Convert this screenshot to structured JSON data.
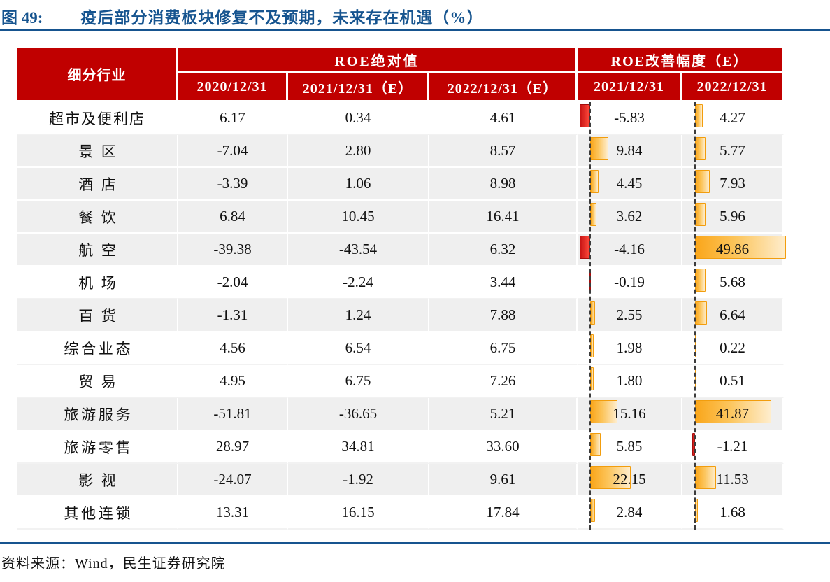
{
  "figure": {
    "tag": "图 49:",
    "title": "疫后部分消费板块修复不及预期，未来存在机遇（%）"
  },
  "table": {
    "corner_header": "细分行业",
    "group_headers": [
      {
        "label": "ROE绝对值",
        "span": 3
      },
      {
        "label": "ROE改善幅度（E）",
        "span": 2
      }
    ],
    "sub_headers": [
      "2020/12/31",
      "2021/12/31（E）",
      "2022/12/31（E）",
      "2021/12/31",
      "2022/12/31"
    ],
    "rows": [
      {
        "label": "超市及便利店",
        "roe": [
          "6.17",
          "0.34",
          "4.61"
        ],
        "impr": [
          "-5.83",
          "4.27"
        ],
        "shaded": false
      },
      {
        "label": "景区",
        "roe": [
          "-7.04",
          "2.80",
          "8.57"
        ],
        "impr": [
          "9.84",
          "5.77"
        ],
        "shaded": true
      },
      {
        "label": "酒店",
        "roe": [
          "-3.39",
          "1.06",
          "8.98"
        ],
        "impr": [
          "4.45",
          "7.93"
        ],
        "shaded": true
      },
      {
        "label": "餐饮",
        "roe": [
          "6.84",
          "10.45",
          "16.41"
        ],
        "impr": [
          "3.62",
          "5.96"
        ],
        "shaded": true
      },
      {
        "label": "航空",
        "roe": [
          "-39.38",
          "-43.54",
          "6.32"
        ],
        "impr": [
          "-4.16",
          "49.86"
        ],
        "shaded": true
      },
      {
        "label": "机场",
        "roe": [
          "-2.04",
          "-2.24",
          "3.44"
        ],
        "impr": [
          "-0.19",
          "5.68"
        ],
        "shaded": false
      },
      {
        "label": "百货",
        "roe": [
          "-1.31",
          "1.24",
          "7.88"
        ],
        "impr": [
          "2.55",
          "6.64"
        ],
        "shaded": true
      },
      {
        "label": "综合业态",
        "roe": [
          "4.56",
          "6.54",
          "6.75"
        ],
        "impr": [
          "1.98",
          "0.22"
        ],
        "shaded": false
      },
      {
        "label": "贸易",
        "roe": [
          "4.95",
          "6.75",
          "7.26"
        ],
        "impr": [
          "1.80",
          "0.51"
        ],
        "shaded": false
      },
      {
        "label": "旅游服务",
        "roe": [
          "-51.81",
          "-36.65",
          "5.21"
        ],
        "impr": [
          "15.16",
          "41.87"
        ],
        "shaded": true
      },
      {
        "label": "旅游零售",
        "roe": [
          "28.97",
          "34.81",
          "33.60"
        ],
        "impr": [
          "5.85",
          "-1.21"
        ],
        "shaded": false
      },
      {
        "label": "影视",
        "roe": [
          "-24.07",
          "-1.92",
          "9.61"
        ],
        "impr": [
          "22.15",
          "11.53"
        ],
        "shaded": true
      },
      {
        "label": "其他连锁",
        "roe": [
          "13.31",
          "16.15",
          "17.84"
        ],
        "impr": [
          "2.84",
          "1.68"
        ],
        "shaded": false
      }
    ]
  },
  "source": "资料来源：Wind，民生证券研究院",
  "colors": {
    "header_bg": "#C00000",
    "title_blue": "#16548F",
    "row_shade": "#EFEFEF",
    "bar_positive": "#FAA61A",
    "bar_positive_border": "#F29D0D",
    "bar_negative": "#E02020",
    "bar_negative_border": "#A50D0D"
  },
  "chart_data": {
    "type": "table",
    "title": "疫后部分消费板块修复不及预期，未来存在机遇（%）",
    "columns": [
      "细分行业",
      "ROE绝对值 2020/12/31",
      "ROE绝对值 2021/12/31（E）",
      "ROE绝对值 2022/12/31（E）",
      "ROE改善幅度（E） 2021/12/31",
      "ROE改善幅度（E） 2022/12/31"
    ],
    "rows": [
      [
        "超市及便利店",
        6.17,
        0.34,
        4.61,
        -5.83,
        4.27
      ],
      [
        "景区",
        -7.04,
        2.8,
        8.57,
        9.84,
        5.77
      ],
      [
        "酒店",
        -3.39,
        1.06,
        8.98,
        4.45,
        7.93
      ],
      [
        "餐饮",
        6.84,
        10.45,
        16.41,
        3.62,
        5.96
      ],
      [
        "航空",
        -39.38,
        -43.54,
        6.32,
        -4.16,
        49.86
      ],
      [
        "机场",
        -2.04,
        -2.24,
        3.44,
        -0.19,
        5.68
      ],
      [
        "百货",
        -1.31,
        1.24,
        7.88,
        2.55,
        6.64
      ],
      [
        "综合业态",
        4.56,
        6.54,
        6.75,
        1.98,
        0.22
      ],
      [
        "贸易",
        4.95,
        6.75,
        7.26,
        1.8,
        0.51
      ],
      [
        "旅游服务",
        -51.81,
        -36.65,
        5.21,
        15.16,
        41.87
      ],
      [
        "旅游零售",
        28.97,
        34.81,
        33.6,
        5.85,
        -1.21
      ],
      [
        "影视",
        -24.07,
        -1.92,
        9.61,
        22.15,
        11.53
      ],
      [
        "其他连锁",
        13.31,
        16.15,
        17.84,
        2.84,
        1.68
      ]
    ],
    "bar_columns": [
      "ROE改善幅度（E） 2021/12/31",
      "ROE改善幅度（E） 2022/12/31"
    ],
    "bar_style": "positive bars orange gradient from dashed zero axis, negative bars red extending left of axis"
  }
}
